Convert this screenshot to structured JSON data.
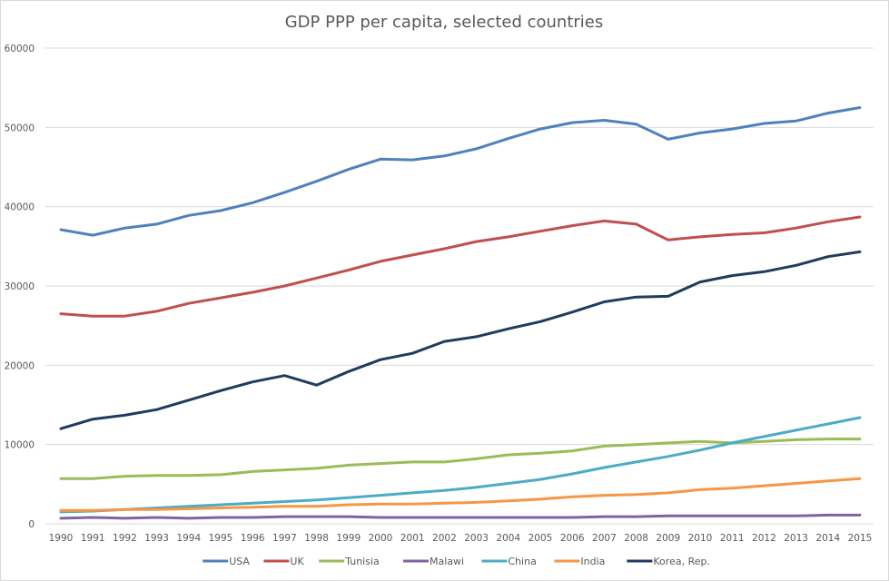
{
  "chart_data": {
    "type": "line",
    "title": "GDP PPP per capita, selected countries",
    "xlabel": "",
    "ylabel": "",
    "ylim": [
      0,
      60000
    ],
    "yticks": [
      0,
      10000,
      20000,
      30000,
      40000,
      50000,
      60000
    ],
    "ytick_labels": [
      "0",
      "10000",
      "20000",
      "30000",
      "40000",
      "50000",
      "60000"
    ],
    "grid": true,
    "legend_position": "bottom",
    "categories": [
      "1990",
      "1991",
      "1992",
      "1993",
      "1994",
      "1995",
      "1996",
      "1997",
      "1998",
      "1999",
      "2000",
      "2001",
      "2002",
      "2003",
      "2004",
      "2005",
      "2006",
      "2007",
      "2008",
      "2009",
      "2010",
      "2011",
      "2012",
      "2013",
      "2014",
      "2015"
    ],
    "series": [
      {
        "name": "USA",
        "color": "#4F81BD",
        "values": [
          37100,
          36400,
          37300,
          37800,
          38900,
          39500,
          40500,
          41800,
          43200,
          44700,
          46000,
          45900,
          46400,
          47300,
          48600,
          49800,
          50600,
          50900,
          50400,
          48500,
          49300,
          49800,
          50500,
          50800,
          51800,
          52500
        ]
      },
      {
        "name": "UK",
        "color": "#C0504D",
        "values": [
          26500,
          26200,
          26200,
          26800,
          27800,
          28500,
          29200,
          30000,
          31000,
          32000,
          33100,
          33900,
          34700,
          35600,
          36200,
          36900,
          37600,
          38200,
          37800,
          35800,
          36200,
          36500,
          36700,
          37300,
          38100,
          38700
        ]
      },
      {
        "name": "Tunisia",
        "color": "#9BBB59",
        "values": [
          5700,
          5700,
          6000,
          6100,
          6100,
          6200,
          6600,
          6800,
          7000,
          7400,
          7600,
          7800,
          7800,
          8200,
          8700,
          8900,
          9200,
          9800,
          10000,
          10200,
          10400,
          10200,
          10400,
          10600,
          10700,
          10700
        ]
      },
      {
        "name": "Malawi",
        "color": "#8064A2",
        "values": [
          700,
          800,
          700,
          800,
          700,
          800,
          800,
          900,
          900,
          900,
          800,
          800,
          800,
          800,
          800,
          800,
          800,
          900,
          900,
          1000,
          1000,
          1000,
          1000,
          1000,
          1100,
          1100
        ]
      },
      {
        "name": "China",
        "color": "#4BACC6",
        "values": [
          1500,
          1600,
          1800,
          2000,
          2200,
          2400,
          2600,
          2800,
          3000,
          3300,
          3600,
          3900,
          4200,
          4600,
          5100,
          5600,
          6300,
          7100,
          7800,
          8500,
          9300,
          10200,
          11000,
          11800,
          12600,
          13400
        ]
      },
      {
        "name": "India",
        "color": "#F79646",
        "values": [
          1700,
          1700,
          1800,
          1800,
          1900,
          2000,
          2100,
          2200,
          2200,
          2400,
          2500,
          2500,
          2600,
          2700,
          2900,
          3100,
          3400,
          3600,
          3700,
          3900,
          4300,
          4500,
          4800,
          5100,
          5400,
          5700
        ]
      },
      {
        "name": "Korea, Rep.",
        "color": "#1F3B5E",
        "values": [
          12000,
          13200,
          13700,
          14400,
          15600,
          16800,
          17900,
          18700,
          17500,
          19200,
          20700,
          21500,
          23000,
          23600,
          24600,
          25500,
          26700,
          28000,
          28600,
          28700,
          30500,
          31300,
          31800,
          32600,
          33700,
          34300
        ]
      }
    ]
  }
}
